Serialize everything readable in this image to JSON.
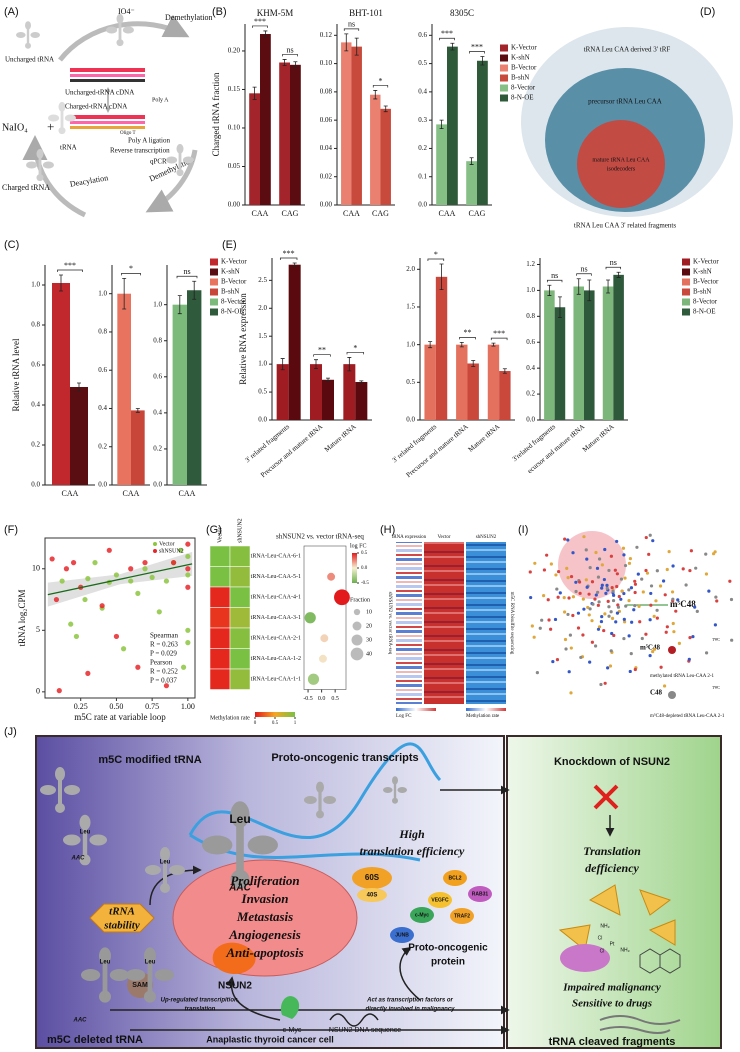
{
  "panel_labels": [
    "(A)",
    "(B)",
    "(C)",
    "(D)",
    "(E)",
    "(F)",
    "(G)",
    "(H)",
    "(I)",
    "(J)"
  ],
  "diagram_a": {
    "io4": "IO4⁻",
    "demethylation_top": "Demethylation",
    "uncharged_trna": "Uncharged tRNA",
    "uncharged_cdna": "Uncharged-tRNA cDNA",
    "charged_cdna": "Charged-tRNA cDNA",
    "poly_a": "Poly A",
    "poly_a_ligation": "Poly A ligation",
    "reverse_transcription": "Reverse transcription",
    "qpcr": "qPCR",
    "oligo_t": "Oligo T",
    "naio4": "NaIO₄",
    "trna": "tRNA",
    "charged_trna": "Charged tRNA",
    "deacylation": "Deacylation",
    "demethylation_bottom": "Demethylation"
  },
  "venn_d": {
    "outer": "tRNA Leu CAA derived 3' tRF",
    "middle": "precursor tRNA Leu CAA",
    "inner": [
      "mature tRNA Leu CAA",
      "isodecoders"
    ],
    "caption": "tRNA Leu CAA  3' related fragments"
  },
  "chart_data": [
    {
      "type": "bar",
      "title": "KHM-5M",
      "ylabel": "Charged tRNA fraction",
      "categories": [
        "CAA",
        "CAG"
      ],
      "ylim": [
        0,
        0.235
      ],
      "yticks": [
        {
          "value": 0,
          "label": "0.00"
        },
        0.05,
        {
          "value": 0.1,
          "label": "0.10"
        },
        0.15,
        {
          "value": 0.2,
          "label": "0.20"
        }
      ],
      "series": [
        {
          "name": "K-Vector",
          "color": "#a3242a",
          "values": [
            0.145,
            0.185
          ],
          "errors": [
            0.008,
            0.004
          ]
        },
        {
          "name": "K-shN",
          "color": "#5a0c10",
          "values": [
            0.222,
            0.182
          ],
          "errors": [
            0.004,
            0.004
          ]
        }
      ],
      "annotations": [
        "***",
        "ns"
      ]
    },
    {
      "type": "bar",
      "title": "BHT-101",
      "categories": [
        "CAA",
        "CAG"
      ],
      "ylim": [
        0,
        0.128
      ],
      "yticks": [
        {
          "value": 0,
          "label": "0.00"
        },
        0.02,
        0.04,
        0.06,
        0.08,
        {
          "value": 0.1,
          "label": "0.10"
        },
        0.12
      ],
      "series": [
        {
          "name": "B-Vector",
          "color": "#e98070",
          "values": [
            0.115,
            0.078
          ],
          "errors": [
            0.006,
            0.003
          ]
        },
        {
          "name": "B-shN",
          "color": "#c84a3c",
          "values": [
            0.112,
            0.068
          ],
          "errors": [
            0.006,
            0.002
          ]
        }
      ],
      "annotations": [
        "ns",
        "*"
      ]
    },
    {
      "type": "bar",
      "title": "8305C",
      "categories": [
        "CAA",
        "CAG"
      ],
      "ylim": [
        0,
        0.64
      ],
      "yticks": [
        {
          "value": 0,
          "label": "0.0"
        },
        0.1,
        0.2,
        0.3,
        0.4,
        0.5,
        0.6
      ],
      "series": [
        {
          "name": "8-Vector",
          "color": "#86bf86",
          "values": [
            0.285,
            0.155
          ],
          "errors": [
            0.015,
            0.012
          ]
        },
        {
          "name": "8-N-OE",
          "color": "#2e5a3a",
          "values": [
            0.56,
            0.51
          ],
          "errors": [
            0.012,
            0.015
          ]
        }
      ],
      "annotations": [
        "***",
        "***"
      ]
    },
    {
      "type": "bar",
      "ylabel": "Relative tRNA level",
      "categories": [
        "CAA"
      ],
      "ylim": [
        0,
        1.1
      ],
      "yticks": [
        {
          "value": 0,
          "label": "0.0"
        },
        0.2,
        0.4,
        0.6,
        0.8,
        {
          "value": 1,
          "label": "1.0"
        }
      ],
      "series": [
        {
          "name": "K-Vector",
          "color": "#c0282d",
          "values": [
            1.01
          ],
          "errors": [
            0.04
          ]
        },
        {
          "name": "K-shN",
          "color": "#5b0e12",
          "values": [
            0.49
          ],
          "errors": [
            0.02
          ]
        }
      ],
      "annotations": [
        "***"
      ]
    },
    {
      "type": "bar",
      "categories": [
        "CAA"
      ],
      "ylim": [
        0,
        1.15
      ],
      "yticks": [
        {
          "value": 0,
          "label": "0.0"
        },
        0.2,
        0.4,
        0.6,
        0.8,
        {
          "value": 1,
          "label": "1.0"
        }
      ],
      "series": [
        {
          "name": "B-Vector",
          "color": "#e8735f",
          "values": [
            1.0
          ],
          "errors": [
            0.08
          ]
        },
        {
          "name": "B-shN",
          "color": "#c8453a",
          "values": [
            0.39
          ],
          "errors": [
            0.01
          ]
        }
      ],
      "annotations": [
        "*"
      ]
    },
    {
      "type": "bar",
      "categories": [
        "CAA"
      ],
      "ylim": [
        0,
        1.22
      ],
      "yticks": [
        {
          "value": 0,
          "label": "0.0"
        },
        0.2,
        0.4,
        0.6,
        0.8,
        {
          "value": 1,
          "label": "1.0"
        }
      ],
      "series": [
        {
          "name": "8-Vector",
          "color": "#7cba7c",
          "values": [
            1.0
          ],
          "errors": [
            0.05
          ]
        },
        {
          "name": "8-N-OE",
          "color": "#2f5a3b",
          "values": [
            1.08
          ],
          "errors": [
            0.05
          ]
        }
      ],
      "annotations": [
        "ns"
      ]
    },
    {
      "type": "bar",
      "ylabel": "Relative RNA expression",
      "categories": [
        "3' related fragments",
        "Precursor and mature tRNA",
        "Mature tRNA"
      ],
      "ylim": [
        0,
        2.9
      ],
      "yticks": [
        {
          "value": 0,
          "label": "0.0"
        },
        0.5,
        {
          "value": 1,
          "label": "1.0"
        },
        1.5,
        {
          "value": 2,
          "label": "2.0"
        },
        2.5
      ],
      "series": [
        {
          "name": "K-Vector",
          "color": "#9e1c22",
          "values": [
            1,
            1,
            1
          ],
          "errors": [
            0.1,
            0.08,
            0.12
          ]
        },
        {
          "name": "K-shN",
          "color": "#5a0a0e",
          "values": [
            2.78,
            0.72,
            0.68
          ],
          "errors": [
            0.03,
            0.03,
            0.02
          ]
        }
      ],
      "annotations": [
        "***",
        "**",
        "*"
      ]
    },
    {
      "type": "bar",
      "categories": [
        "3' related fragments",
        "Precursor and mature tRNA",
        "Mature tRNA"
      ],
      "ylim": [
        0,
        2.15
      ],
      "yticks": [
        {
          "value": 0,
          "label": "0.0"
        },
        0.5,
        {
          "value": 1,
          "label": "1.0"
        },
        1.5,
        {
          "value": 2,
          "label": "2.0"
        }
      ],
      "series": [
        {
          "name": "B-Vector",
          "color": "#e3715e",
          "values": [
            1,
            1,
            1
          ],
          "errors": [
            0.04,
            0.03,
            0.02
          ]
        },
        {
          "name": "B-shN",
          "color": "#c9473b",
          "values": [
            1.9,
            0.75,
            0.65
          ],
          "errors": [
            0.17,
            0.04,
            0.03
          ]
        }
      ],
      "annotations": [
        "*",
        "**",
        "***"
      ]
    },
    {
      "type": "bar",
      "categories": [
        "3'related fragments",
        "ecursor and mature tRNA",
        "Mature tRNA"
      ],
      "ylim": [
        0,
        1.25
      ],
      "yticks": [
        {
          "value": 0,
          "label": "0.0"
        },
        0.2,
        0.4,
        0.6,
        0.8,
        {
          "value": 1,
          "label": "1.0"
        },
        1.2
      ],
      "series": [
        {
          "name": "8-Vector",
          "color": "#7db67b",
          "values": [
            1,
            1.03,
            1.03
          ],
          "errors": [
            0.04,
            0.06,
            0.05
          ]
        },
        {
          "name": "8-N-OE",
          "color": "#2e5a3b",
          "values": [
            0.87,
            1.0,
            1.12
          ],
          "errors": [
            0.08,
            0.08,
            0.02
          ]
        }
      ],
      "annotations": [
        "ns",
        "ns",
        "ns"
      ]
    },
    {
      "type": "scatter",
      "xlabel": "m5C rate at variable loop",
      "ylabel": "tRNA log₂CPM",
      "xlim": [
        0,
        1.05
      ],
      "ylim": [
        -0.5,
        12.5
      ],
      "xticks": [
        0.25,
        {
          "value": 0.5,
          "label": "0.50"
        },
        0.75,
        {
          "value": 1,
          "label": "1.00"
        }
      ],
      "yticks": [
        0,
        5,
        10
      ],
      "legend": "upper right",
      "series": [
        {
          "name": "Vector",
          "color": "#8cc63f",
          "x": [
            0.12,
            0.18,
            0.22,
            0.28,
            0.3,
            0.35,
            0.4,
            0.45,
            0.5,
            0.55,
            0.6,
            0.65,
            0.7,
            0.75,
            0.8,
            0.85,
            0.9,
            0.95,
            1.0,
            1.0,
            1.0,
            1.0,
            0.97
          ],
          "values": [
            9,
            5.5,
            4.5,
            7.5,
            9.2,
            10.5,
            6.8,
            8.9,
            9.5,
            3.5,
            9,
            8,
            10,
            9.3,
            6.5,
            9,
            10.5,
            11.5,
            9.5,
            5,
            4,
            11,
            2
          ]
        },
        {
          "name": "shNSUN2",
          "color": "#e8262a",
          "x": [
            0.05,
            0.08,
            0.1,
            0.15,
            0.2,
            0.25,
            0.3,
            0.4,
            0.45,
            0.5,
            0.6,
            0.65,
            0.7,
            0.85,
            0.9,
            1.0,
            1.0,
            1.0
          ],
          "values": [
            10.8,
            7.5,
            0.1,
            10,
            10.5,
            8.5,
            1.5,
            7,
            11.5,
            4.5,
            10,
            2,
            10.5,
            0.5,
            10.5,
            10,
            8.5,
            12
          ]
        }
      ],
      "trend": {
        "x": [
          0.02,
          1.03
        ],
        "y": [
          7.9,
          10.4
        ]
      },
      "annotations": [
        "Spearman",
        "R = 0.263",
        "P = 0.029",
        "Pearson",
        "R = 0.252",
        "P = 0.037"
      ]
    },
    {
      "type": "dot",
      "title": "shNSUN2 vs. vector tRNA-seq",
      "rows": [
        "tRNA-Leu-CAA-6-1",
        "tRNA-Leu-CAA-5-1",
        "tRNA-Leu-CAA-4-1",
        "tRNA-Leu-CAA-3-1",
        "tRNA-Leu-CAA-2-1",
        "tRNA-Leu-CAA-1-2",
        "tRNA-Leu-CAA-1-1"
      ],
      "heatmap": [
        {
          "name": "Vector",
          "values": [
            1,
            1,
            0.05,
            0.1,
            0.05,
            0.05,
            0.05
          ]
        },
        {
          "name": "shNSUN2",
          "values": [
            0.95,
            0.9,
            1,
            0.85,
            0.95,
            1,
            0.9
          ]
        }
      ],
      "log_fc": [
        null,
        0.35,
        0.75,
        -0.42,
        0.1,
        0.05,
        -0.3
      ],
      "fraction": [
        null,
        10,
        40,
        20,
        10,
        10,
        20
      ],
      "xlim": [
        -0.65,
        0.9
      ],
      "xticks": [
        -0.5,
        {
          "value": 0,
          "label": "0.0"
        },
        0.5
      ],
      "logfc_legend": {
        "title": "log FC",
        "ticks": [
          0.5,
          {
            "value": 0,
            "label": "0.0"
          },
          -0.5
        ]
      },
      "fraction_legend": {
        "title": "Fraction",
        "values": [
          10,
          20,
          30,
          40
        ]
      },
      "methylation_legend": {
        "title": "Methylation rate",
        "ticks": [
          0,
          0.5,
          1
        ]
      }
    }
  ],
  "heatmap_h": {
    "columns": [
      "tRNA expression",
      "Vector",
      "shNSUN2"
    ],
    "left_label": "shNSUN2 vs. vector tRNA-seq",
    "right_label": "m5C RNA bisulfite sequencing",
    "legend_left": "Log FC",
    "legend_right": "Methylation rate"
  },
  "structure_i": {
    "site": "m⁵C48",
    "methylated_site": "m⁵C48",
    "methylated_caption": "methylated tRNA Leu-CAA 2-1",
    "depleted_site": "C48",
    "depleted_caption": "m⁵C48-depleted tRNA Leu-CAA 2-1",
    "loop": [
      "TΨC",
      "TΨC"
    ]
  },
  "diagram_j": {
    "modified_trna": "m5C modified tRNA",
    "transcripts": "Proto-oncogenic transcripts",
    "knockdown": "Knockdown of NSUN2",
    "deficiency": [
      "Translation",
      "defficiency"
    ],
    "leu": [
      "Leu",
      "Leu",
      "Leu",
      "Leu",
      "Leu"
    ],
    "aac": [
      "AAC",
      "AAC",
      "AAC"
    ],
    "stability": [
      "tRNA",
      "stability"
    ],
    "sam": "SAM",
    "nsun2": "NSUN2",
    "ribosome": [
      "60S",
      "40S"
    ],
    "efficiency": [
      "High",
      "translation efficiency"
    ],
    "phenotypes": [
      "Proliferation",
      "Invasion",
      "Metastasis",
      "Angiogenesis",
      "Anti-apoptosis"
    ],
    "proteins": [
      "BCL2",
      "VEGFC",
      "RAB31",
      "TRAF2",
      "c-Myc",
      "JUNB"
    ],
    "protein_label": [
      "Proto-oncogenic",
      "protein"
    ],
    "upregulated": [
      "Up-regulated transcripition,",
      "translation"
    ],
    "act": [
      "Act as transcription factors or",
      "directly involved in malignancy"
    ],
    "cmyc": "c-Myc",
    "dna": "NSUN2 DNA sequence",
    "deleted_trna": "m5C deleted tRNA",
    "cell": "Anaplastic thyroid cancer cell",
    "impaired": [
      "Impaired malignancy",
      "Sensitive to drugs"
    ],
    "fragments": "tRNA cleaved fragments",
    "cisplatin": [
      "NH₃",
      "Cl",
      "Pt",
      "NH₃",
      "Cl"
    ]
  }
}
